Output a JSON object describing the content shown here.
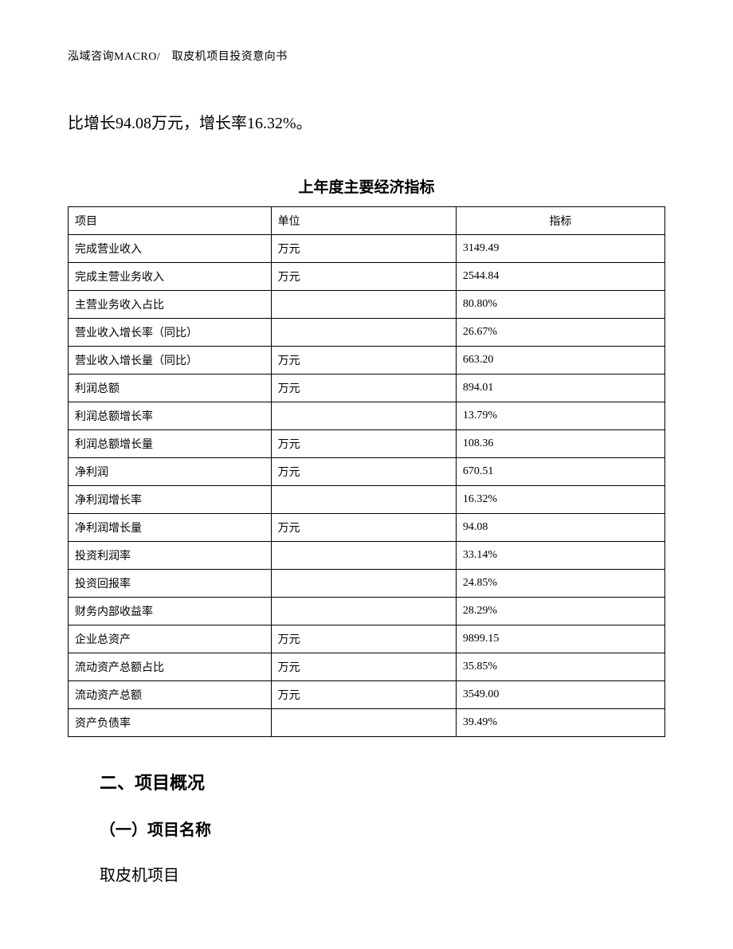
{
  "header": "泓域咨询MACRO/　取皮机项目投资意向书",
  "body_sentence": "比增长94.08万元，增长率16.32%。",
  "table_title": "上年度主要经济指标",
  "table": {
    "columns": [
      "项目",
      "单位",
      "指标"
    ],
    "rows": [
      [
        "完成营业收入",
        "万元",
        "3149.49"
      ],
      [
        "完成主营业务收入",
        "万元",
        "2544.84"
      ],
      [
        "主营业务收入占比",
        "",
        "80.80%"
      ],
      [
        "营业收入增长率（同比）",
        "",
        "26.67%"
      ],
      [
        "营业收入增长量（同比）",
        "万元",
        "663.20"
      ],
      [
        "利润总额",
        "万元",
        "894.01"
      ],
      [
        "利润总额增长率",
        "",
        "13.79%"
      ],
      [
        "利润总额增长量",
        "万元",
        "108.36"
      ],
      [
        "净利润",
        "万元",
        "670.51"
      ],
      [
        "净利润增长率",
        "",
        "16.32%"
      ],
      [
        "净利润增长量",
        "万元",
        "94.08"
      ],
      [
        "投资利润率",
        "",
        "33.14%"
      ],
      [
        "投资回报率",
        "",
        "24.85%"
      ],
      [
        "财务内部收益率",
        "",
        "28.29%"
      ],
      [
        "企业总资产",
        "万元",
        "9899.15"
      ],
      [
        "流动资产总额占比",
        "万元",
        "35.85%"
      ],
      [
        "流动资产总额",
        "万元",
        "3549.00"
      ],
      [
        "资产负债率",
        "",
        "39.49%"
      ]
    ]
  },
  "section_heading": "二、项目概况",
  "sub_heading": "（一）项目名称",
  "sub_text": "取皮机项目",
  "style": {
    "page_bg": "#ffffff",
    "text_color": "#000000",
    "border_color": "#000000",
    "header_fontsize": 14,
    "body_fontsize": 20,
    "table_title_fontsize": 19,
    "table_cell_fontsize": 14,
    "section_heading_fontsize": 22,
    "sub_heading_fontsize": 20,
    "col_widths_pct": [
      34,
      31,
      35
    ]
  }
}
